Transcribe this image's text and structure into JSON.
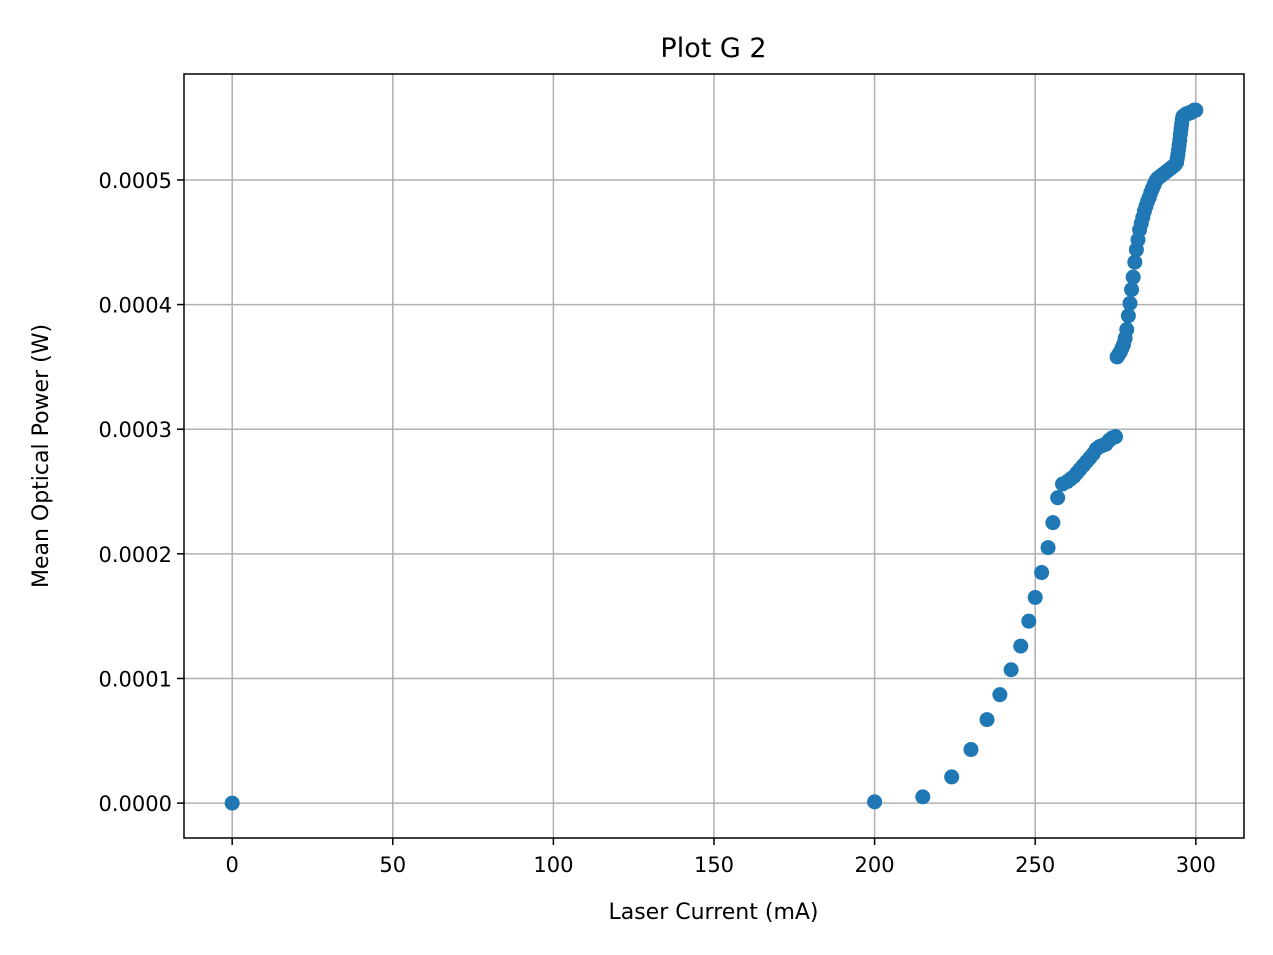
{
  "chart_data": {
    "type": "scatter",
    "title": "Plot G 2",
    "xlabel": "Laser Current (mA)",
    "ylabel": "Mean Optical Power (W)",
    "xlim": [
      -15,
      315
    ],
    "ylim": [
      -2.8e-05,
      0.000585
    ],
    "xticks": [
      0,
      50,
      100,
      150,
      200,
      250,
      300
    ],
    "xtick_labels": [
      "0",
      "50",
      "100",
      "150",
      "200",
      "250",
      "300"
    ],
    "yticks": [
      0,
      0.0001,
      0.0002,
      0.0003,
      0.0004,
      0.0005
    ],
    "ytick_labels": [
      "0.0000",
      "0.0001",
      "0.0002",
      "0.0003",
      "0.0004",
      "0.0005"
    ],
    "grid": true,
    "legend": "none",
    "colors": {
      "marker": "#1f77b4",
      "grid": "#b0b0b0",
      "axes": "#000000"
    },
    "series": [
      {
        "x": [
          0,
          200,
          215,
          224,
          230,
          235,
          239,
          242.5,
          245.5,
          248,
          250,
          252,
          254,
          255.5,
          257,
          258.5,
          260,
          261,
          262,
          263,
          264,
          265,
          266,
          267,
          268,
          269,
          270,
          271,
          272,
          273,
          274,
          275,
          275.5,
          276,
          276.5,
          277,
          277.5,
          278,
          278.5,
          279,
          279.5,
          280,
          280.5,
          281,
          281.5,
          282,
          282.5,
          283,
          283.5,
          284,
          284.5,
          285,
          285.5,
          286,
          286.5,
          287,
          287.5,
          288,
          288.5,
          289,
          289.5,
          290,
          290.5,
          291,
          291.5,
          292,
          292.5,
          293,
          293.5,
          294,
          294.2,
          294.4,
          294.6,
          294.8,
          295,
          295.2,
          295.4,
          295.6,
          295.8,
          296,
          296.5,
          297,
          297.5,
          298,
          298.5,
          299,
          299.5,
          300
        ],
        "y": [
          0,
          1e-06,
          5e-06,
          2.1e-05,
          4.3e-05,
          6.7e-05,
          8.7e-05,
          0.000107,
          0.000126,
          0.000146,
          0.000165,
          0.000185,
          0.000205,
          0.000225,
          0.000245,
          0.000256,
          0.000258,
          0.00026,
          0.000262,
          0.000265,
          0.000268,
          0.000271,
          0.000274,
          0.000277,
          0.00028,
          0.000284,
          0.000286,
          0.000287,
          0.000288,
          0.000291,
          0.000293,
          0.000294,
          0.000358,
          0.00036,
          0.000362,
          0.000365,
          0.000368,
          0.000373,
          0.00038,
          0.000391,
          0.000401,
          0.000412,
          0.000422,
          0.000434,
          0.000444,
          0.000452,
          0.00046,
          0.000465,
          0.00047,
          0.000475,
          0.000479,
          0.000483,
          0.000486,
          0.00049,
          0.000493,
          0.000496,
          0.000499,
          0.000501,
          0.000502,
          0.000503,
          0.000504,
          0.000505,
          0.000506,
          0.000507,
          0.000508,
          0.000509,
          0.00051,
          0.000511,
          0.000512,
          0.000514,
          0.000517,
          0.00052,
          0.000524,
          0.000528,
          0.000532,
          0.000537,
          0.000541,
          0.000545,
          0.000549,
          0.000551,
          0.000552,
          0.000553,
          0.000553,
          0.000554,
          0.000554,
          0.000555,
          0.000556,
          0.000556
        ]
      }
    ]
  }
}
